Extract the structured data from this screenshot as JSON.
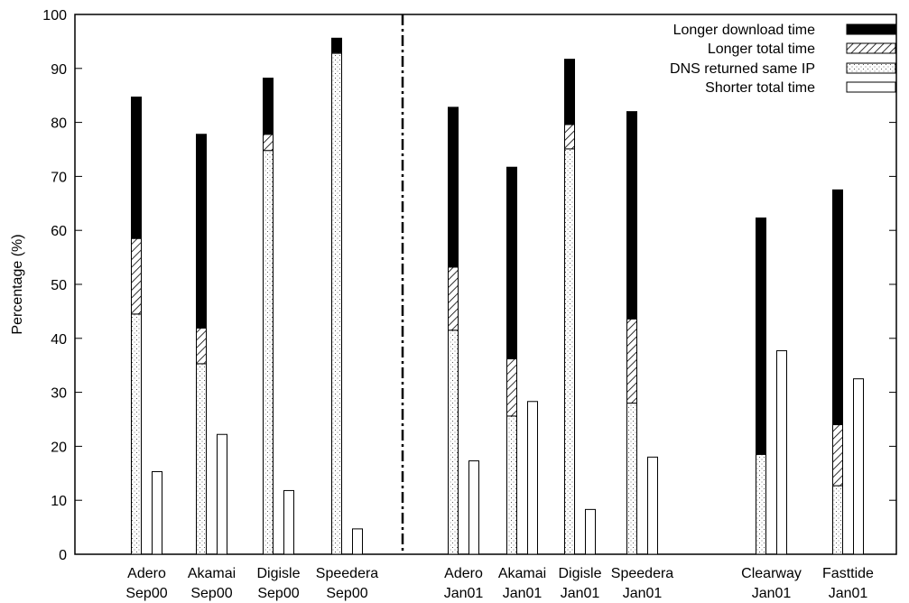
{
  "chart_data": {
    "type": "bar",
    "stacked": true,
    "ylabel": "Percentage (%)",
    "ylim": [
      0,
      100
    ],
    "yticks": [
      0,
      10,
      20,
      30,
      40,
      50,
      60,
      70,
      80,
      90,
      100
    ],
    "legend_position": "top-right",
    "legend": [
      {
        "key": "download",
        "label": "Longer download time",
        "pattern": "solid-black"
      },
      {
        "key": "total",
        "label": "Longer total time",
        "pattern": "diagonal-hatch"
      },
      {
        "key": "dns",
        "label": "DNS returned same IP",
        "pattern": "dots"
      },
      {
        "key": "shorter",
        "label": "Shorter total time",
        "pattern": "white"
      }
    ],
    "groups": [
      {
        "name": "Adero",
        "period": "Sep00",
        "dns": 44.5,
        "total": 14.0,
        "download": 26.2,
        "shorter": 15.3
      },
      {
        "name": "Akamai",
        "period": "Sep00",
        "dns": 35.3,
        "total": 6.6,
        "download": 35.9,
        "shorter": 22.2
      },
      {
        "name": "Digisle",
        "period": "Sep00",
        "dns": 74.8,
        "total": 3.0,
        "download": 10.4,
        "shorter": 11.8
      },
      {
        "name": "Speedera",
        "period": "Sep00",
        "dns": 92.8,
        "total": 0.2,
        "download": 2.6,
        "shorter": 4.7
      },
      {
        "name": "Adero",
        "period": "Jan01",
        "dns": 41.5,
        "total": 11.7,
        "download": 29.6,
        "shorter": 17.3
      },
      {
        "name": "Akamai",
        "period": "Jan01",
        "dns": 25.6,
        "total": 10.6,
        "download": 35.5,
        "shorter": 28.3
      },
      {
        "name": "Digisle",
        "period": "Jan01",
        "dns": 75.1,
        "total": 4.5,
        "download": 12.1,
        "shorter": 8.3
      },
      {
        "name": "Speedera",
        "period": "Jan01",
        "dns": 28.0,
        "total": 15.6,
        "download": 38.4,
        "shorter": 18.0
      },
      {
        "name": "Clearway",
        "period": "Jan01",
        "dns": 18.5,
        "total": 0.0,
        "download": 43.8,
        "shorter": 37.7
      },
      {
        "name": "Fasttide",
        "period": "Jan01",
        "dns": 12.7,
        "total": 11.3,
        "download": 43.5,
        "shorter": 32.5
      }
    ]
  }
}
